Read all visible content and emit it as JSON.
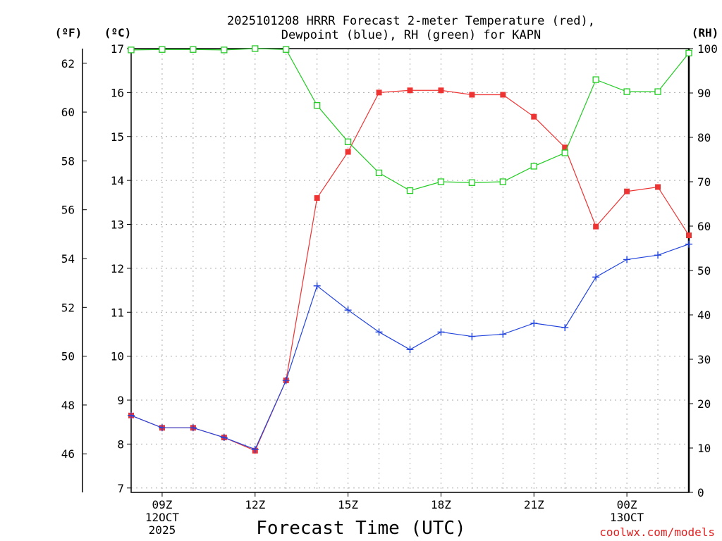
{
  "chart_data": {
    "type": "line",
    "title_line1": "2025101208 HRRR Forecast 2-meter Temperature (red),",
    "title_line2": "Dewpoint (blue), RH (green) for KAPN",
    "xlabel": "Forecast Time (UTC)",
    "credit": "coolwx.com/models",
    "units": {
      "fahrenheit": "(ºF)",
      "celsius": "(ºC)",
      "rh": "(RH)"
    },
    "x_hours": [
      8,
      9,
      10,
      11,
      12,
      13,
      14,
      15,
      16,
      17,
      18,
      19,
      20,
      21,
      22,
      23,
      24,
      25,
      26
    ],
    "x_range": [
      8,
      26
    ],
    "x_ticks": [
      {
        "hour": 9,
        "lines": [
          "09Z",
          "12OCT",
          "2025"
        ]
      },
      {
        "hour": 12,
        "lines": [
          "12Z"
        ]
      },
      {
        "hour": 15,
        "lines": [
          "15Z"
        ]
      },
      {
        "hour": 18,
        "lines": [
          "18Z"
        ]
      },
      {
        "hour": 21,
        "lines": [
          "21Z"
        ]
      },
      {
        "hour": 24,
        "lines": [
          "00Z",
          "13OCT"
        ]
      }
    ],
    "y_celsius": {
      "range": [
        6.9,
        17
      ],
      "ticks": [
        7,
        8,
        9,
        10,
        11,
        12,
        13,
        14,
        15,
        16,
        17
      ]
    },
    "y_fahrenheit": {
      "ticks": [
        46,
        48,
        50,
        52,
        54,
        56,
        58,
        60,
        62
      ]
    },
    "y_rh": {
      "range": [
        0,
        100
      ],
      "ticks": [
        0,
        10,
        20,
        30,
        40,
        50,
        60,
        70,
        80,
        90,
        100
      ]
    },
    "series": [
      {
        "name": "Temperature",
        "color": "#ee3333",
        "marker": "filled-square",
        "values": [
          8.65,
          8.37,
          8.37,
          8.15,
          7.85,
          9.45,
          13.6,
          14.65,
          16.0,
          16.05,
          16.05,
          15.95,
          15.95,
          15.45,
          14.75,
          12.95,
          13.75,
          13.85,
          12.75
        ]
      },
      {
        "name": "Dewpoint",
        "color": "#2244dd",
        "marker": "plus",
        "values": [
          8.65,
          8.37,
          8.37,
          8.15,
          7.88,
          9.45,
          11.6,
          11.05,
          10.55,
          10.15,
          10.55,
          10.45,
          10.5,
          10.75,
          10.65,
          11.8,
          12.2,
          12.3,
          12.55
        ]
      },
      {
        "name": "RH",
        "color": "#22cc22",
        "marker": "open-square",
        "values": [
          99.7,
          99.8,
          99.8,
          99.7,
          100,
          99.8,
          87.2,
          79.0,
          72.0,
          68.0,
          70.0,
          69.8,
          70.0,
          73.5,
          76.5,
          93.0,
          90.3,
          90.3,
          99.0
        ]
      }
    ]
  }
}
